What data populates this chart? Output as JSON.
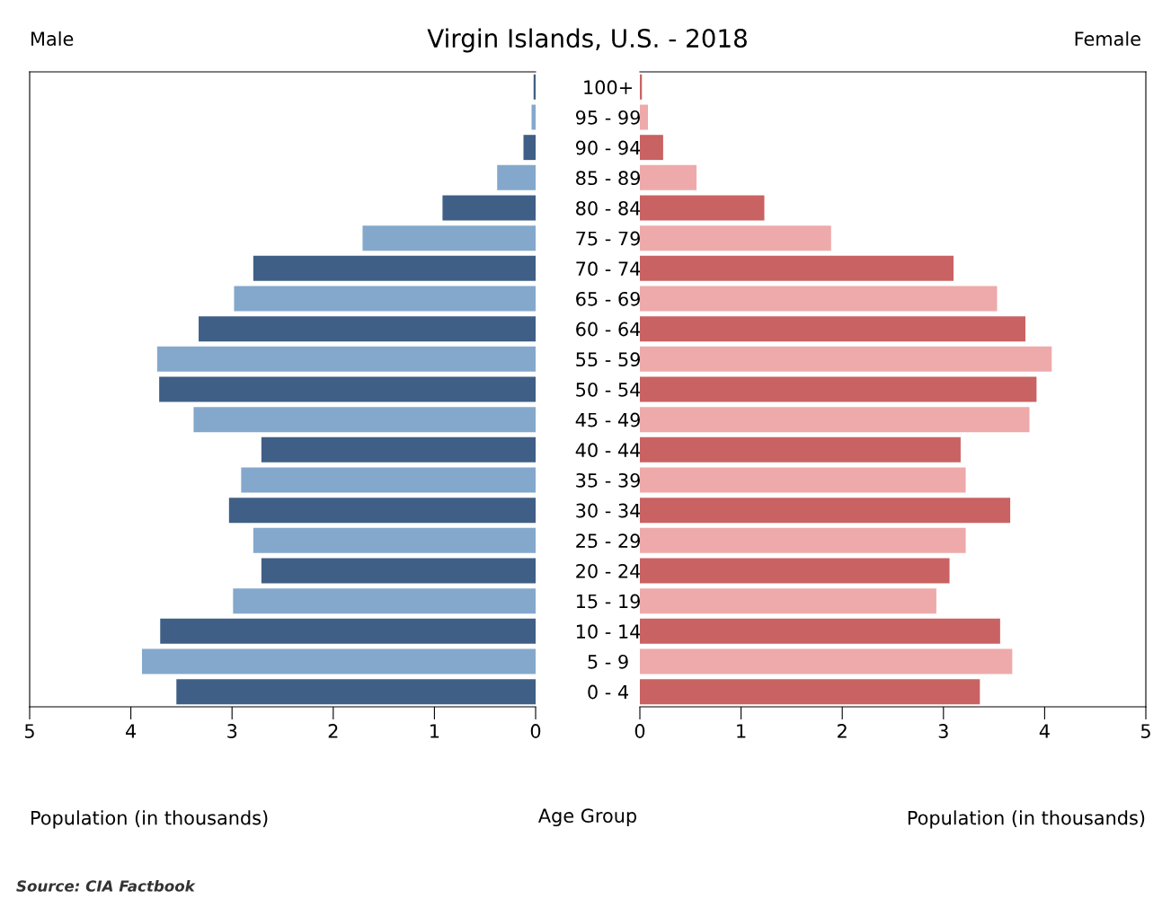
{
  "chart_data": [
    {
      "type": "bar",
      "orientation": "horizontal",
      "title": "Virgin Islands, U.S. - 2018",
      "xlabel": "Population (in thousands)",
      "ylabel": "Age Group",
      "categories": [
        "100+",
        "95 - 99",
        "90 - 94",
        "85 - 89",
        "80 - 84",
        "75 - 79",
        "70 - 74",
        "65 - 69",
        "60 - 64",
        "55 - 59",
        "50 - 54",
        "45 - 49",
        "40 - 44",
        "35 - 39",
        "30 - 34",
        "25 - 29",
        "20 - 24",
        "15 - 19",
        "10 - 14",
        "5 - 9",
        "0 - 4"
      ],
      "values": [
        0.02,
        0.04,
        0.12,
        0.38,
        0.92,
        1.71,
        2.79,
        2.98,
        3.33,
        3.74,
        3.72,
        3.38,
        2.71,
        2.91,
        3.03,
        2.79,
        2.71,
        2.99,
        3.71,
        3.89,
        3.55
      ],
      "colors": [
        "#3f5f86",
        "#84a8cc",
        "#3f5f86",
        "#84a8cc",
        "#3f5f86",
        "#84a8cc",
        "#3f5f86",
        "#84a8cc",
        "#3f5f86",
        "#84a8cc",
        "#3f5f86",
        "#84a8cc",
        "#3f5f86",
        "#84a8cc",
        "#3f5f86",
        "#84a8cc",
        "#3f5f86",
        "#84a8cc",
        "#3f5f86",
        "#84a8cc",
        "#3f5f86"
      ],
      "xlim": [
        5,
        0
      ],
      "xticks": [
        5,
        4,
        3,
        2,
        1,
        0
      ],
      "annotations": [
        "Male",
        "Source: CIA Factbook"
      ]
    },
    {
      "type": "bar",
      "orientation": "horizontal",
      "xlabel": "Population (in thousands)",
      "tick_labels": "x",
      "categories": [
        null,
        null,
        null,
        null,
        null,
        null,
        null,
        null,
        null,
        null,
        null,
        null,
        null,
        null,
        null,
        null,
        null,
        null,
        null,
        null,
        null
      ],
      "values": [
        0.02,
        0.08,
        0.23,
        0.56,
        1.23,
        1.89,
        3.1,
        3.53,
        3.81,
        4.07,
        3.92,
        3.85,
        3.17,
        3.22,
        3.66,
        3.22,
        3.06,
        2.93,
        3.56,
        3.68,
        3.36
      ],
      "colors": [
        "#c96262",
        "#eeaaaa",
        "#c96262",
        "#eeaaaa",
        "#c96262",
        "#eeaaaa",
        "#c96262",
        "#eeaaaa",
        "#c96262",
        "#eeaaaa",
        "#c96262",
        "#eeaaaa",
        "#c96262",
        "#eeaaaa",
        "#c96262",
        "#eeaaaa",
        "#c96262",
        "#eeaaaa",
        "#c96262",
        "#eeaaaa",
        "#c96262"
      ],
      "xlim": [
        0,
        5
      ],
      "xticks": [
        0,
        1,
        2,
        3,
        4,
        5
      ],
      "annotations": [
        "Female"
      ]
    }
  ]
}
